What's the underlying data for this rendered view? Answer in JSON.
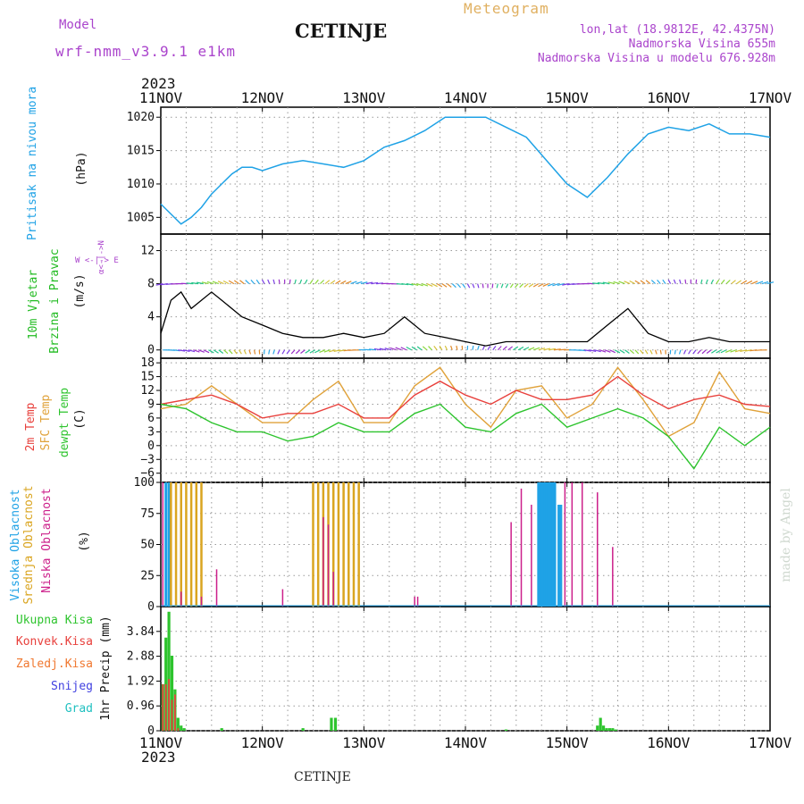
{
  "header": {
    "model_label": "Model",
    "model_name": "wrf-nmm_v3.9.1 e1km",
    "station": "CETINJE",
    "meteogram": "Meteogram",
    "lonlat": "lon,lat (18.9812E, 42.4375N)",
    "elev": "Nadmorska Visina 655m",
    "elev_model": "Nadmorska Visina u modelu 676.928m",
    "year_top": "2023",
    "year_bottom": "2023",
    "footer_station": "CETINJE",
    "watermark": "made by Angel"
  },
  "colors": {
    "pressure": "#1fa2e6",
    "wind_label": "#22bb22",
    "temp2m": "#e8403c",
    "sfc": "#e0a23a",
    "dew": "#2ec42e",
    "high": "#1fa2e6",
    "mid": "#daa520",
    "low": "#cc1f8a",
    "total": "#2ec42e",
    "conv": "#e8403c",
    "frz": "#f07830",
    "snow": "#4040e0",
    "grad": "#20c0c0",
    "purple": "#aa44cc"
  },
  "chart_data": [
    {
      "type": "line",
      "title": "",
      "ylabel_lines": [
        "Pritisak na nivou mora",
        "(hPa)"
      ],
      "x_ticks": [
        "11NOV",
        "12NOV",
        "13NOV",
        "14NOV",
        "15NOV",
        "16NOV",
        "17NOV"
      ],
      "y_ticks": [
        "1005",
        "1010",
        "1015",
        "1020"
      ],
      "ylim": [
        1002.5,
        1021.5
      ],
      "series": [
        {
          "x": [
            0,
            0.1,
            0.2,
            0.3,
            0.4,
            0.5,
            0.6,
            0.7,
            0.8,
            0.9,
            1.0,
            1.2,
            1.4,
            1.6,
            1.8,
            2.0,
            2.2,
            2.4,
            2.6,
            2.8,
            3.0,
            3.2,
            3.4,
            3.6,
            3.8,
            4.0,
            4.2,
            4.4,
            4.6,
            4.8,
            5.0,
            5.2,
            5.4,
            5.6,
            5.8,
            6.0
          ],
          "values": [
            1007,
            1005.5,
            1004,
            1005,
            1006.5,
            1008.5,
            1010,
            1011.5,
            1012.5,
            1012.5,
            1012,
            1013,
            1013.5,
            1013,
            1012.5,
            1013.5,
            1015.5,
            1016.5,
            1018,
            1020,
            1020,
            1020,
            1018.5,
            1017,
            1013.5,
            1010,
            1008,
            1011,
            1014.5,
            1017.5,
            1018.5,
            1018,
            1019,
            1017.5,
            1017.5,
            1017
          ]
        }
      ]
    },
    {
      "type": "line",
      "title": "",
      "ylabel_lines": [
        "10m Vjetar",
        "Brzina i Pravac",
        "(m/s)"
      ],
      "x_ticks": [
        "11NOV",
        "12NOV",
        "13NOV",
        "14NOV",
        "15NOV",
        "16NOV",
        "17NOV"
      ],
      "y_ticks": [
        "0",
        "4",
        "8",
        "12"
      ],
      "ylim": [
        -1,
        14
      ],
      "series": [
        {
          "name": "",
          "x": [
            0,
            0.1,
            0.2,
            0.3,
            0.4,
            0.5,
            0.6,
            0.8,
            1.0,
            1.2,
            1.4,
            1.6,
            1.8,
            2.0,
            2.2,
            2.4,
            2.6,
            2.8,
            3.0,
            3.2,
            3.4,
            3.6,
            3.8,
            4.0,
            4.2,
            4.4,
            4.6,
            4.8,
            5.0,
            5.2,
            5.4,
            5.6,
            5.8,
            6.0
          ],
          "values": [
            2,
            6,
            7,
            5,
            6,
            7,
            6,
            4,
            3,
            2,
            1.5,
            1.5,
            2,
            1.5,
            2,
            4,
            2,
            1.5,
            1,
            0.5,
            1,
            1,
            1,
            1,
            1,
            3,
            5,
            2,
            1,
            1,
            1.5,
            1,
            1,
            1
          ]
        }
      ]
    },
    {
      "type": "line",
      "title": "",
      "ylabel_lines": [
        "2m Temp",
        "SFC Temp",
        "dewpt Temp",
        "(C)"
      ],
      "x_ticks": [
        "11NOV",
        "12NOV",
        "13NOV",
        "14NOV",
        "15NOV",
        "16NOV",
        "17NOV"
      ],
      "y_ticks": [
        "−6",
        "−3",
        "0",
        "3",
        "6",
        "9",
        "12",
        "15",
        "18"
      ],
      "ylim": [
        -8,
        19
      ],
      "series": [
        {
          "name": "2m Temp",
          "x": [
            0,
            0.25,
            0.5,
            0.75,
            1.0,
            1.25,
            1.5,
            1.75,
            2.0,
            2.25,
            2.5,
            2.75,
            3.0,
            3.25,
            3.5,
            3.75,
            4.0,
            4.25,
            4.5,
            4.75,
            5.0,
            5.25,
            5.5,
            5.75,
            6.0
          ],
          "values": [
            9,
            10,
            11,
            9,
            6,
            7,
            7,
            9,
            6,
            6,
            11,
            14,
            11,
            9,
            12,
            10,
            10,
            11,
            15,
            11,
            8,
            10,
            11,
            9,
            8.5
          ]
        },
        {
          "name": "SFC Temp",
          "x": [
            0,
            0.25,
            0.5,
            0.75,
            1.0,
            1.25,
            1.5,
            1.75,
            2.0,
            2.25,
            2.5,
            2.75,
            3.0,
            3.25,
            3.5,
            3.75,
            4.0,
            4.25,
            4.5,
            4.75,
            5.0,
            5.25,
            5.5,
            5.75,
            6.0
          ],
          "values": [
            8,
            9,
            13,
            9,
            5,
            5,
            10,
            14,
            5,
            5,
            13,
            17,
            9,
            4,
            12,
            13,
            6,
            9,
            17,
            10,
            2,
            5,
            16,
            8,
            7
          ]
        },
        {
          "name": "dewpt Temp",
          "x": [
            0,
            0.25,
            0.5,
            0.75,
            1.0,
            1.25,
            1.5,
            1.75,
            2.0,
            2.25,
            2.5,
            2.75,
            3.0,
            3.25,
            3.5,
            3.75,
            4.0,
            4.25,
            4.5,
            4.75,
            5.0,
            5.25,
            5.5,
            5.75,
            6.0
          ],
          "values": [
            9,
            8,
            5,
            3,
            3,
            1,
            2,
            5,
            3,
            3,
            7,
            9,
            4,
            3,
            7,
            9,
            4,
            6,
            8,
            6,
            2,
            -5,
            4,
            0,
            4
          ]
        }
      ]
    },
    {
      "type": "bar",
      "title": "",
      "ylabel_lines": [
        "Visoka Oblacnost",
        "Srednja Oblacnost",
        "Niska Oblacnost",
        "(%)"
      ],
      "x_ticks": [
        "11NOV",
        "12NOV",
        "13NOV",
        "14NOV",
        "15NOV",
        "16NOV",
        "17NOV"
      ],
      "y_ticks": [
        "0",
        "25",
        "50",
        "75",
        "100"
      ],
      "ylim": [
        0,
        100
      ],
      "series": [
        {
          "name": "Visoka Oblacnost",
          "x": [
            0.05,
            0.08,
            3.72,
            3.74,
            3.76,
            3.78,
            3.8,
            3.82,
            3.84,
            3.86,
            3.88,
            3.92,
            3.94
          ],
          "values": [
            100,
            100,
            100,
            100,
            100,
            100,
            100,
            100,
            100,
            100,
            100,
            82,
            82
          ]
        },
        {
          "name": "Srednja Oblacnost",
          "x": [
            0.1,
            0.15,
            0.2,
            0.25,
            0.3,
            0.35,
            0.4,
            1.5,
            1.55,
            1.6,
            1.65,
            1.7,
            1.75,
            1.8,
            1.85,
            1.9,
            1.95
          ],
          "values": [
            100,
            100,
            100,
            100,
            100,
            100,
            100,
            100,
            100,
            100,
            100,
            100,
            100,
            100,
            100,
            100,
            100
          ]
        },
        {
          "name": "Niska Oblacnost",
          "x": [
            0.02,
            0.2,
            0.4,
            0.55,
            1.2,
            1.6,
            1.65,
            1.7,
            2.5,
            2.53,
            3.45,
            3.55,
            3.65,
            3.98,
            4.05,
            4.15,
            4.3,
            4.45
          ],
          "values": [
            100,
            12,
            8,
            30,
            14,
            72,
            66,
            28,
            8,
            8,
            68,
            95,
            82,
            100,
            100,
            100,
            92,
            48
          ]
        }
      ]
    },
    {
      "type": "bar",
      "title": "",
      "ylabel_lines": [
        "Ukupna Kisa",
        "Konvek.Kisa",
        "Zaledj.Kisa",
        "Snijeg",
        "Grad",
        "1hr Precip (mm)"
      ],
      "x_ticks": [
        "11NOV",
        "12NOV",
        "13NOV",
        "14NOV",
        "15NOV",
        "16NOV",
        "17NOV"
      ],
      "y_ticks": [
        "0",
        "0.96",
        "1.92",
        "2.88",
        "3.84"
      ],
      "ylim": [
        0,
        4.8
      ],
      "series": [
        {
          "name": "Ukupna Kisa",
          "x": [
            0.02,
            0.05,
            0.08,
            0.11,
            0.14,
            0.17,
            0.2,
            0.23,
            0.6,
            1.4,
            1.68,
            1.72,
            3.4,
            4.3,
            4.33,
            4.36,
            4.39,
            4.42,
            4.45,
            4.48
          ],
          "values": [
            1.8,
            3.6,
            4.6,
            2.9,
            1.6,
            0.5,
            0.2,
            0.1,
            0.1,
            0.1,
            0.5,
            0.5,
            0.05,
            0.2,
            0.5,
            0.2,
            0.1,
            0.1,
            0.1,
            0.05
          ]
        },
        {
          "name": "Konvek.Kisa",
          "x": [
            0.02,
            0.05,
            0.08,
            0.11,
            0.14,
            0.17
          ],
          "values": [
            1.8,
            1.8,
            2.0,
            1.2,
            1.4,
            0.1
          ]
        },
        {
          "name": "Zaledj.Kisa",
          "x": [],
          "values": []
        },
        {
          "name": "Snijeg",
          "x": [],
          "values": []
        },
        {
          "name": "Grad",
          "x": [],
          "values": []
        }
      ]
    }
  ]
}
